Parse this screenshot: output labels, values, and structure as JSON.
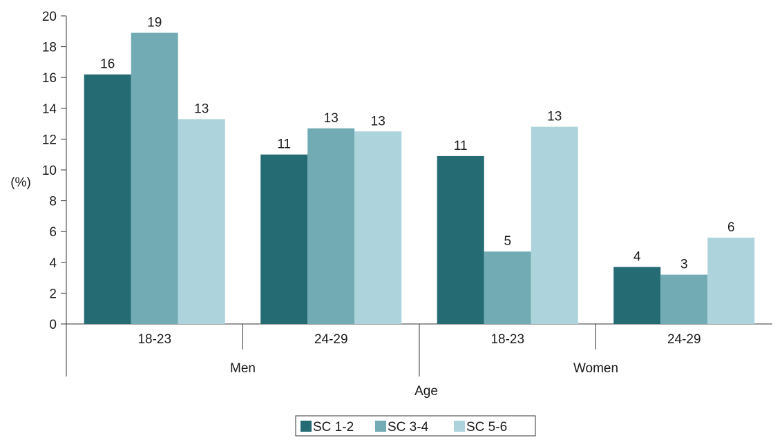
{
  "chart_data": {
    "type": "bar",
    "ylabel": "(%)",
    "xlabel": "Age",
    "ylim": [
      0,
      20
    ],
    "yticks": [
      0,
      2,
      4,
      6,
      8,
      10,
      12,
      14,
      16,
      18,
      20
    ],
    "groups": [
      {
        "label": "Men",
        "categories": [
          "18-23",
          "24-29"
        ]
      },
      {
        "label": "Women",
        "categories": [
          "18-23",
          "24-29"
        ]
      }
    ],
    "categories": [
      "18-23",
      "24-29",
      "18-23",
      "24-29"
    ],
    "series": [
      {
        "name": "SC 1-2",
        "color": "#246b73",
        "values": [
          16.2,
          11.0,
          10.9,
          3.7
        ],
        "labels": [
          "16",
          "11",
          "11",
          "4"
        ]
      },
      {
        "name": "SC 3-4",
        "color": "#72abb3",
        "values": [
          18.9,
          12.7,
          4.7,
          3.2
        ],
        "labels": [
          "19",
          "13",
          "5",
          "3"
        ]
      },
      {
        "name": "SC 5-6",
        "color": "#add4dc",
        "values": [
          13.3,
          12.5,
          12.8,
          5.6
        ],
        "labels": [
          "13",
          "13",
          "13",
          "6"
        ]
      }
    ],
    "grid": false,
    "legend": "bottom"
  }
}
